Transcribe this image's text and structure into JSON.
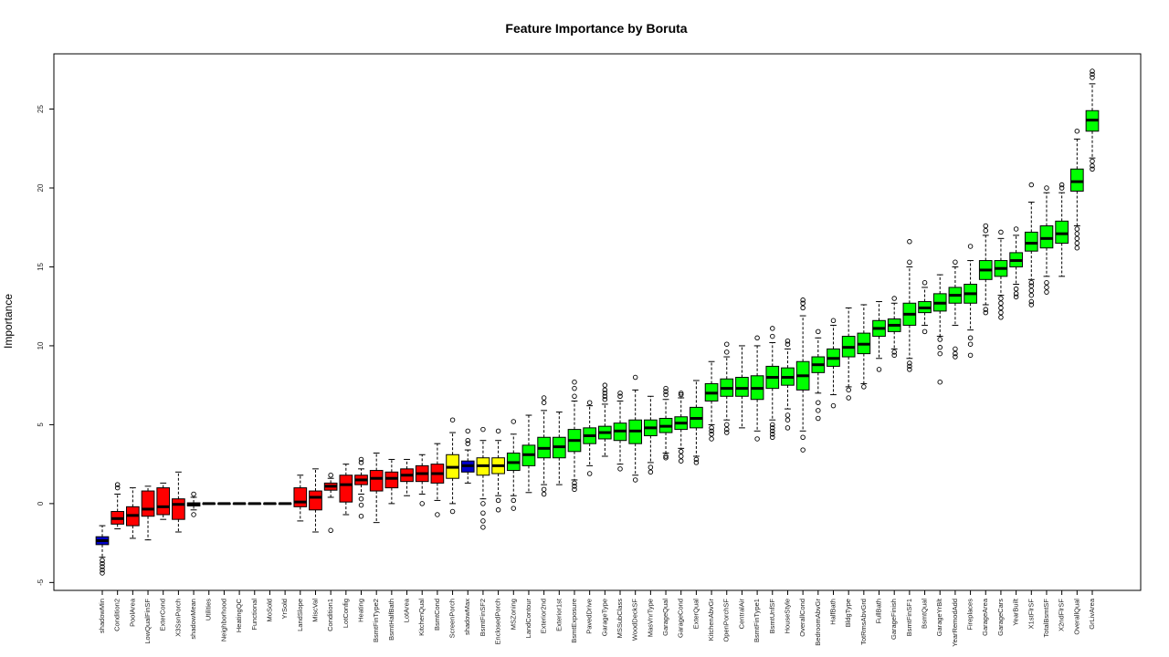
{
  "chart_data": {
    "type": "boxplot",
    "title": "Feature Importance by Boruta",
    "xlabel": "",
    "ylabel": "Importance",
    "ylim": [
      -5.5,
      28.5
    ],
    "yticks": [
      -5,
      0,
      5,
      10,
      15,
      20,
      25
    ],
    "colors": {
      "shadow": "#0000cc",
      "rejected": "#ff0000",
      "tentative": "#ffff00",
      "confirmed": "#00ff00"
    },
    "features": [
      {
        "name": "shadowMin",
        "status": "shadow",
        "q1": -2.6,
        "med": -2.35,
        "q3": -2.1,
        "wlo": -3.4,
        "whi": -1.4,
        "out": [
          -3.6,
          -3.8,
          -4.0,
          -4.2,
          -4.4
        ]
      },
      {
        "name": "Condition2",
        "status": "rejected",
        "q1": -1.3,
        "med": -0.95,
        "q3": -0.5,
        "wlo": -1.6,
        "whi": 0.6,
        "out": [
          1.0,
          1.2
        ]
      },
      {
        "name": "PoolArea",
        "status": "rejected",
        "q1": -1.4,
        "med": -0.75,
        "q3": -0.2,
        "wlo": -2.2,
        "whi": 1.0,
        "out": []
      },
      {
        "name": "LowQualFinSF",
        "status": "rejected",
        "q1": -0.8,
        "med": -0.35,
        "q3": 0.8,
        "wlo": -2.3,
        "whi": 1.1,
        "out": []
      },
      {
        "name": "ExterCond",
        "status": "rejected",
        "q1": -0.7,
        "med": -0.2,
        "q3": 1.0,
        "wlo": -1.0,
        "whi": 1.3,
        "out": []
      },
      {
        "name": "X3SsnPorch",
        "status": "rejected",
        "q1": -1.0,
        "med": -0.05,
        "q3": 0.3,
        "wlo": -1.8,
        "whi": 2.0,
        "out": []
      },
      {
        "name": "shadowMean",
        "status": "shadow",
        "q1": -0.15,
        "med": -0.05,
        "q3": 0.05,
        "wlo": -0.4,
        "whi": 0.4,
        "out": [
          0.6,
          -0.7
        ]
      },
      {
        "name": "Utilities",
        "status": "rejected",
        "q1": 0,
        "med": 0,
        "q3": 0,
        "wlo": 0,
        "whi": 0,
        "out": []
      },
      {
        "name": "Neighborhood",
        "status": "rejected",
        "q1": 0,
        "med": 0,
        "q3": 0,
        "wlo": 0,
        "whi": 0,
        "out": []
      },
      {
        "name": "HeatingQC",
        "status": "rejected",
        "q1": 0,
        "med": 0,
        "q3": 0,
        "wlo": 0,
        "whi": 0,
        "out": []
      },
      {
        "name": "Functional",
        "status": "rejected",
        "q1": 0,
        "med": 0,
        "q3": 0,
        "wlo": 0,
        "whi": 0,
        "out": []
      },
      {
        "name": "MoSold",
        "status": "rejected",
        "q1": 0,
        "med": 0,
        "q3": 0,
        "wlo": 0,
        "whi": 0,
        "out": []
      },
      {
        "name": "YrSold",
        "status": "rejected",
        "q1": 0,
        "med": 0,
        "q3": 0,
        "wlo": 0,
        "whi": 0,
        "out": []
      },
      {
        "name": "LandSlope",
        "status": "rejected",
        "q1": -0.2,
        "med": 0.1,
        "q3": 1.0,
        "wlo": -1.1,
        "whi": 1.8,
        "out": []
      },
      {
        "name": "MiscVal",
        "status": "rejected",
        "q1": -0.4,
        "med": 0.4,
        "q3": 0.8,
        "wlo": -1.8,
        "whi": 2.2,
        "out": []
      },
      {
        "name": "Condition1",
        "status": "rejected",
        "q1": 0.85,
        "med": 1.1,
        "q3": 1.3,
        "wlo": 0.4,
        "whi": 1.6,
        "out": [
          1.8,
          -1.7
        ]
      },
      {
        "name": "LotConfig",
        "status": "rejected",
        "q1": 0.1,
        "med": 1.2,
        "q3": 1.8,
        "wlo": -0.7,
        "whi": 2.5,
        "out": []
      },
      {
        "name": "Heating",
        "status": "rejected",
        "q1": 1.2,
        "med": 1.5,
        "q3": 1.8,
        "wlo": 0.6,
        "whi": 2.2,
        "out": [
          2.6,
          2.8,
          0.3,
          -0.1,
          -0.8
        ]
      },
      {
        "name": "BsmtFinType2",
        "status": "rejected",
        "q1": 0.8,
        "med": 1.6,
        "q3": 2.1,
        "wlo": -1.2,
        "whi": 3.2,
        "out": []
      },
      {
        "name": "BsmtHalfBath",
        "status": "rejected",
        "q1": 1.0,
        "med": 1.6,
        "q3": 2.0,
        "wlo": 0.0,
        "whi": 2.8,
        "out": []
      },
      {
        "name": "LotArea",
        "status": "rejected",
        "q1": 1.4,
        "med": 1.8,
        "q3": 2.2,
        "wlo": 0.5,
        "whi": 2.8,
        "out": []
      },
      {
        "name": "KitchenQual",
        "status": "rejected",
        "q1": 1.4,
        "med": 1.9,
        "q3": 2.4,
        "wlo": 0.6,
        "whi": 3.1,
        "out": [
          0.0
        ]
      },
      {
        "name": "BsmtCond",
        "status": "rejected",
        "q1": 1.3,
        "med": 1.9,
        "q3": 2.5,
        "wlo": 0.2,
        "whi": 3.8,
        "out": [
          -0.7
        ]
      },
      {
        "name": "ScreenPorch",
        "status": "tentative",
        "q1": 1.6,
        "med": 2.3,
        "q3": 3.1,
        "wlo": 0.0,
        "whi": 4.5,
        "out": [
          5.3,
          -0.5
        ]
      },
      {
        "name": "shadowMax",
        "status": "shadow",
        "q1": 2.0,
        "med": 2.4,
        "q3": 2.7,
        "wlo": 1.3,
        "whi": 3.4,
        "out": [
          3.8,
          4.0,
          4.6
        ]
      },
      {
        "name": "BsmtFinSF2",
        "status": "tentative",
        "q1": 1.8,
        "med": 2.4,
        "q3": 2.9,
        "wlo": 0.3,
        "whi": 4.0,
        "out": [
          4.7,
          0.0,
          -0.6,
          -1.1,
          -1.5
        ]
      },
      {
        "name": "EnclosedPorch",
        "status": "tentative",
        "q1": 1.9,
        "med": 2.4,
        "q3": 2.9,
        "wlo": 0.5,
        "whi": 4.0,
        "out": [
          4.6,
          0.2,
          -0.4
        ]
      },
      {
        "name": "MSZoning",
        "status": "confirmed",
        "q1": 2.1,
        "med": 2.6,
        "q3": 3.2,
        "wlo": 0.5,
        "whi": 4.4,
        "out": [
          5.2,
          0.2,
          -0.3
        ]
      },
      {
        "name": "LandContour",
        "status": "confirmed",
        "q1": 2.4,
        "med": 3.1,
        "q3": 3.7,
        "wlo": 0.7,
        "whi": 5.6,
        "out": []
      },
      {
        "name": "Exterior2nd",
        "status": "confirmed",
        "q1": 2.9,
        "med": 3.5,
        "q3": 4.2,
        "wlo": 1.2,
        "whi": 5.9,
        "out": [
          6.4,
          6.7,
          0.9,
          0.6
        ]
      },
      {
        "name": "Exterior1st",
        "status": "confirmed",
        "q1": 2.9,
        "med": 3.6,
        "q3": 4.2,
        "wlo": 1.2,
        "whi": 5.8,
        "out": []
      },
      {
        "name": "BsmtExposure",
        "status": "confirmed",
        "q1": 3.3,
        "med": 4.0,
        "q3": 4.7,
        "wlo": 1.5,
        "whi": 6.5,
        "out": [
          6.8,
          7.3,
          7.7,
          1.3,
          1.1,
          0.9
        ]
      },
      {
        "name": "PavedDrive",
        "status": "confirmed",
        "q1": 3.8,
        "med": 4.3,
        "q3": 4.8,
        "wlo": 2.4,
        "whi": 6.2,
        "out": [
          6.4,
          1.9
        ]
      },
      {
        "name": "GarageType",
        "status": "confirmed",
        "q1": 4.1,
        "med": 4.5,
        "q3": 4.9,
        "wlo": 3.0,
        "whi": 6.3,
        "out": [
          6.6,
          6.8,
          7.0,
          7.2,
          7.5
        ]
      },
      {
        "name": "MSSubClass",
        "status": "confirmed",
        "q1": 4.0,
        "med": 4.6,
        "q3": 5.1,
        "wlo": 2.5,
        "whi": 6.5,
        "out": [
          6.8,
          7.0,
          2.2
        ]
      },
      {
        "name": "WoodDeckSF",
        "status": "confirmed",
        "q1": 3.8,
        "med": 4.6,
        "q3": 5.3,
        "wlo": 1.8,
        "whi": 7.2,
        "out": [
          8.0,
          1.5
        ]
      },
      {
        "name": "MasVnrType",
        "status": "confirmed",
        "q1": 4.3,
        "med": 4.8,
        "q3": 5.3,
        "wlo": 2.6,
        "whi": 6.8,
        "out": [
          2.3,
          2.0
        ]
      },
      {
        "name": "GarageQual",
        "status": "confirmed",
        "q1": 4.5,
        "med": 4.9,
        "q3": 5.4,
        "wlo": 3.2,
        "whi": 6.6,
        "out": [
          6.9,
          7.1,
          7.3,
          3.0,
          2.9
        ]
      },
      {
        "name": "GarageCond",
        "status": "confirmed",
        "q1": 4.7,
        "med": 5.1,
        "q3": 5.5,
        "wlo": 3.5,
        "whi": 6.7,
        "out": [
          6.9,
          7.0,
          3.3,
          3.0,
          2.7
        ]
      },
      {
        "name": "ExterQual",
        "status": "confirmed",
        "q1": 4.8,
        "med": 5.4,
        "q3": 6.1,
        "wlo": 3.0,
        "whi": 7.8,
        "out": [
          2.8,
          2.6
        ]
      },
      {
        "name": "KitchenAbvGr",
        "status": "confirmed",
        "q1": 6.5,
        "med": 7.0,
        "q3": 7.6,
        "wlo": 5.0,
        "whi": 9.0,
        "out": [
          4.8,
          4.6,
          4.4,
          4.1
        ]
      },
      {
        "name": "OpenPorchSF",
        "status": "confirmed",
        "q1": 6.8,
        "med": 7.3,
        "q3": 7.9,
        "wlo": 5.3,
        "whi": 9.3,
        "out": [
          9.6,
          10.1,
          5.0,
          4.7,
          4.5
        ]
      },
      {
        "name": "CentralAir",
        "status": "confirmed",
        "q1": 6.8,
        "med": 7.3,
        "q3": 8.0,
        "wlo": 4.8,
        "whi": 10.0,
        "out": []
      },
      {
        "name": "BsmtFinType1",
        "status": "confirmed",
        "q1": 6.6,
        "med": 7.3,
        "q3": 8.1,
        "wlo": 4.6,
        "whi": 10.0,
        "out": [
          10.5,
          4.1
        ]
      },
      {
        "name": "BsmtUnfSF",
        "status": "confirmed",
        "q1": 7.3,
        "med": 8.0,
        "q3": 8.7,
        "wlo": 5.3,
        "whi": 10.2,
        "out": [
          10.6,
          11.1,
          5.0,
          4.8,
          4.6,
          4.4,
          4.2
        ]
      },
      {
        "name": "HouseStyle",
        "status": "confirmed",
        "q1": 7.5,
        "med": 8.0,
        "q3": 8.6,
        "wlo": 6.0,
        "whi": 9.8,
        "out": [
          10.1,
          10.3,
          5.6,
          5.3,
          4.8
        ]
      },
      {
        "name": "OverallCond",
        "status": "confirmed",
        "q1": 7.2,
        "med": 8.1,
        "q3": 9.0,
        "wlo": 4.6,
        "whi": 11.9,
        "out": [
          12.4,
          12.7,
          12.9,
          4.2,
          3.4
        ]
      },
      {
        "name": "BedroomAbvGr",
        "status": "confirmed",
        "q1": 8.3,
        "med": 8.8,
        "q3": 9.3,
        "wlo": 7.0,
        "whi": 10.5,
        "out": [
          10.9,
          6.4,
          5.9,
          5.4
        ]
      },
      {
        "name": "HalfBath",
        "status": "confirmed",
        "q1": 8.7,
        "med": 9.2,
        "q3": 9.8,
        "wlo": 6.9,
        "whi": 11.3,
        "out": [
          11.6,
          6.2
        ]
      },
      {
        "name": "BldgType",
        "status": "confirmed",
        "q1": 9.3,
        "med": 9.9,
        "q3": 10.6,
        "wlo": 7.4,
        "whi": 12.4,
        "out": [
          7.2,
          6.7
        ]
      },
      {
        "name": "TotRmsAbvGrd",
        "status": "confirmed",
        "q1": 9.5,
        "med": 10.1,
        "q3": 10.8,
        "wlo": 7.6,
        "whi": 12.6,
        "out": [
          7.4
        ]
      },
      {
        "name": "FullBath",
        "status": "confirmed",
        "q1": 10.6,
        "med": 11.1,
        "q3": 11.6,
        "wlo": 9.2,
        "whi": 12.8,
        "out": [
          8.5
        ]
      },
      {
        "name": "GarageFinish",
        "status": "confirmed",
        "q1": 10.9,
        "med": 11.3,
        "q3": 11.7,
        "wlo": 9.8,
        "whi": 12.7,
        "out": [
          13.0,
          9.6,
          9.4
        ]
      },
      {
        "name": "BsmtFinSF1",
        "status": "confirmed",
        "q1": 11.3,
        "med": 12.0,
        "q3": 12.7,
        "wlo": 9.2,
        "whi": 15.0,
        "out": [
          15.3,
          16.6,
          8.9,
          8.7,
          8.5
        ]
      },
      {
        "name": "BsmtQual",
        "status": "confirmed",
        "q1": 12.1,
        "med": 12.4,
        "q3": 12.8,
        "wlo": 11.3,
        "whi": 13.7,
        "out": [
          14.0,
          10.9
        ]
      },
      {
        "name": "GarageYrBlt",
        "status": "confirmed",
        "q1": 12.2,
        "med": 12.7,
        "q3": 13.3,
        "wlo": 10.6,
        "whi": 14.5,
        "out": [
          10.4,
          9.9,
          9.5,
          7.7
        ]
      },
      {
        "name": "YearRemodAdd",
        "status": "confirmed",
        "q1": 12.7,
        "med": 13.2,
        "q3": 13.7,
        "wlo": 11.3,
        "whi": 15.0,
        "out": [
          15.3,
          9.8,
          9.5,
          9.3
        ]
      },
      {
        "name": "Fireplaces",
        "status": "confirmed",
        "q1": 12.7,
        "med": 13.3,
        "q3": 13.9,
        "wlo": 11.0,
        "whi": 15.4,
        "out": [
          16.3,
          10.5,
          10.1,
          9.4
        ]
      },
      {
        "name": "GarageArea",
        "status": "confirmed",
        "q1": 14.2,
        "med": 14.8,
        "q3": 15.4,
        "wlo": 12.6,
        "whi": 17.0,
        "out": [
          17.3,
          17.6,
          12.3,
          12.1
        ]
      },
      {
        "name": "GarageCars",
        "status": "confirmed",
        "q1": 14.4,
        "med": 14.9,
        "q3": 15.4,
        "wlo": 13.2,
        "whi": 16.8,
        "out": [
          17.2,
          13.0,
          12.7,
          12.4,
          12.1,
          11.8
        ]
      },
      {
        "name": "YearBuilt",
        "status": "confirmed",
        "q1": 15.0,
        "med": 15.4,
        "q3": 15.9,
        "wlo": 13.9,
        "whi": 17.0,
        "out": [
          17.4,
          13.6,
          13.3,
          13.1
        ]
      },
      {
        "name": "X1stFlrSF",
        "status": "confirmed",
        "q1": 16.0,
        "med": 16.5,
        "q3": 17.2,
        "wlo": 14.2,
        "whi": 19.1,
        "out": [
          20.2,
          14.0,
          13.8,
          13.5,
          13.2,
          12.8,
          12.6
        ]
      },
      {
        "name": "TotalBsmtSF",
        "status": "confirmed",
        "q1": 16.2,
        "med": 16.8,
        "q3": 17.6,
        "wlo": 14.4,
        "whi": 19.7,
        "out": [
          20.0,
          14.0,
          13.7,
          13.4
        ]
      },
      {
        "name": "X2ndFlrSF",
        "status": "confirmed",
        "q1": 16.5,
        "med": 17.1,
        "q3": 17.9,
        "wlo": 14.4,
        "whi": 19.7,
        "out": [
          20.0,
          20.2
        ]
      },
      {
        "name": "OverallQual",
        "status": "confirmed",
        "q1": 19.8,
        "med": 20.4,
        "q3": 21.2,
        "wlo": 17.6,
        "whi": 23.1,
        "out": [
          23.6,
          17.4,
          17.1,
          16.8,
          16.5,
          16.2
        ]
      },
      {
        "name": "GrLivArea",
        "status": "confirmed",
        "q1": 23.6,
        "med": 24.3,
        "q3": 24.9,
        "wlo": 21.9,
        "whi": 26.6,
        "out": [
          27.0,
          27.2,
          27.4,
          21.7,
          21.4,
          21.2
        ]
      }
    ]
  }
}
